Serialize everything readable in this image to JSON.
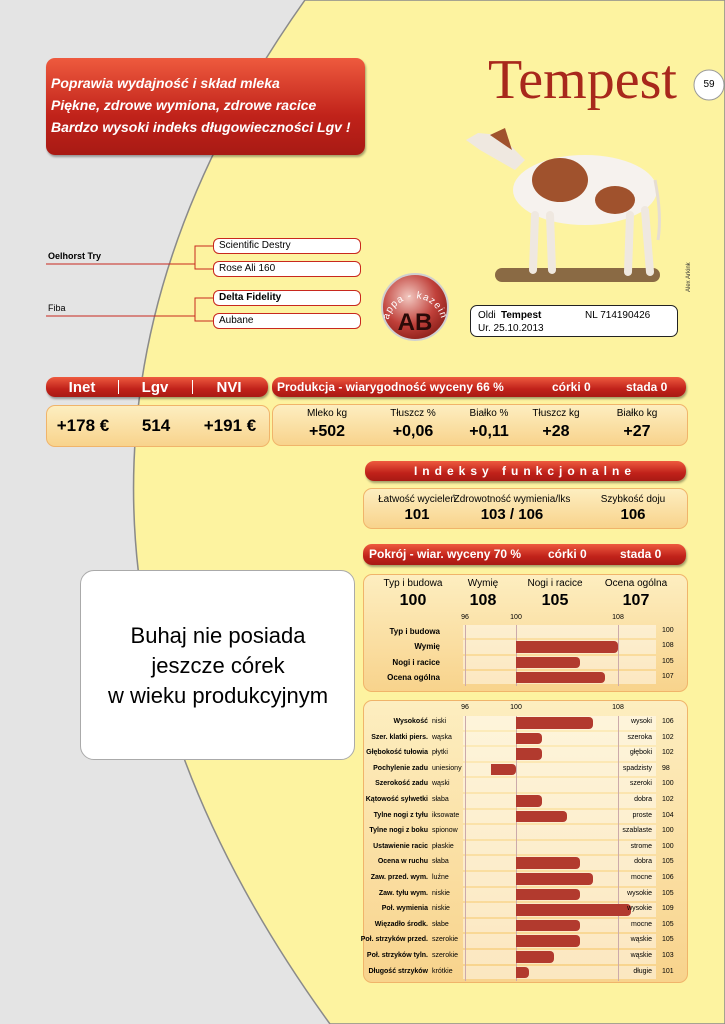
{
  "page_number": "59",
  "title": "Tempest",
  "highlights": [
    "Poprawia wydajność i skład mleka",
    "Piękne, zdrowe wymiona, zdrowe racice",
    "Bardzo wysoki indeks długowieczności Lgv !"
  ],
  "pedigree": {
    "sire": "Oelhorst Try",
    "sire_sire": "Scientific Destry",
    "sire_dam": "Rose Ali 160",
    "dam": "Fiba",
    "dam_sire": "Delta Fidelity",
    "dam_dam": "Aubane"
  },
  "photo_credit": "Alex Arkink",
  "kappa_casein": {
    "label": "kappa - kazeina",
    "value": "AB"
  },
  "id_card": {
    "prefix": "Oldi",
    "name": "Tempest",
    "number": "NL 714190426",
    "born": "Ur. 25.10.2013"
  },
  "indices": {
    "headers": [
      "Inet",
      "Lgv",
      "NVI"
    ],
    "values": [
      "+178 €",
      "514",
      "+191 €"
    ]
  },
  "production": {
    "title": "Produkcja - wiarygodność wyceny 66 %",
    "daughters": "córki 0",
    "herds": "stada 0",
    "labels": [
      "Mleko kg",
      "Tłuszcz %",
      "Białko %",
      "Tłuszcz kg",
      "Białko kg"
    ],
    "values": [
      "+502",
      "+0,06",
      "+0,11",
      "+28",
      "+27"
    ]
  },
  "functional": {
    "title": "Indeksy funkcjonalne",
    "labels": [
      "Łatwość wycieleń",
      "Zdrowotność wymienia/lks",
      "Szybkość doju"
    ],
    "values": [
      "101",
      "103 / 106",
      "106"
    ]
  },
  "conformation": {
    "title": "Pokrój - wiar. wyceny 70 %",
    "daughters": "córki 0",
    "herds": "stada 0",
    "labels": [
      "Typ i budowa",
      "Wymię",
      "Nogi i racice",
      "Ocena ogólna"
    ],
    "values": [
      100,
      108,
      105,
      107
    ],
    "summary_chart": {
      "ticks": [
        96,
        100,
        108
      ],
      "rows": [
        {
          "label": "Typ i budowa",
          "value": 100
        },
        {
          "label": "Wymię",
          "value": 108
        },
        {
          "label": "Nogi i racice",
          "value": 105
        },
        {
          "label": "Ocena ogólna",
          "value": 107
        }
      ]
    },
    "linear_chart": {
      "ticks": [
        96,
        100,
        108
      ],
      "rows": [
        {
          "label": "Wysokość",
          "low": "niski",
          "high": "wysoki",
          "value": 106
        },
        {
          "label": "Szer. klatki piers.",
          "low": "wąska",
          "high": "szeroka",
          "value": 102
        },
        {
          "label": "Głębokość tułowia",
          "low": "płytki",
          "high": "głęboki",
          "value": 102
        },
        {
          "label": "Pochylenie zadu",
          "low": "uniesiony",
          "high": "spadzisty",
          "value": 98
        },
        {
          "label": "Szerokość zadu",
          "low": "wąski",
          "high": "szeroki",
          "value": 100
        },
        {
          "label": "Kątowość sylwetki",
          "low": "słaba",
          "high": "dobra",
          "value": 102
        },
        {
          "label": "Tylne nogi z tyłu",
          "low": "iksowate",
          "high": "proste",
          "value": 104
        },
        {
          "label": "Tylne nogi z boku",
          "low": "spionow",
          "high": "szablaste",
          "value": 100
        },
        {
          "label": "Ustawienie racic",
          "low": "płaskie",
          "high": "strome",
          "value": 100
        },
        {
          "label": "Ocena w ruchu",
          "low": "słaba",
          "high": "dobra",
          "value": 105
        },
        {
          "label": "Zaw. przed. wym.",
          "low": "luźne",
          "high": "mocne",
          "value": 106
        },
        {
          "label": "Zaw. tyłu wym.",
          "low": "niskie",
          "high": "wysokie",
          "value": 105
        },
        {
          "label": "Poł. wymienia",
          "low": "niskie",
          "high": "wysokie",
          "value": 109
        },
        {
          "label": "Więzadło środk.",
          "low": "słabe",
          "high": "mocne",
          "value": 105
        },
        {
          "label": "Poł. strzyków przed.",
          "low": "szerokie",
          "high": "wąskie",
          "value": 105
        },
        {
          "label": "Poł. strzyków tyln.",
          "low": "szerokie",
          "high": "wąskie",
          "value": 103
        },
        {
          "label": "Długość strzyków",
          "low": "krótkie",
          "high": "długie",
          "value": 101
        }
      ]
    }
  },
  "note": [
    "Buhaj nie posiada",
    "jeszcze córek",
    "w wieku produkcyjnym"
  ]
}
